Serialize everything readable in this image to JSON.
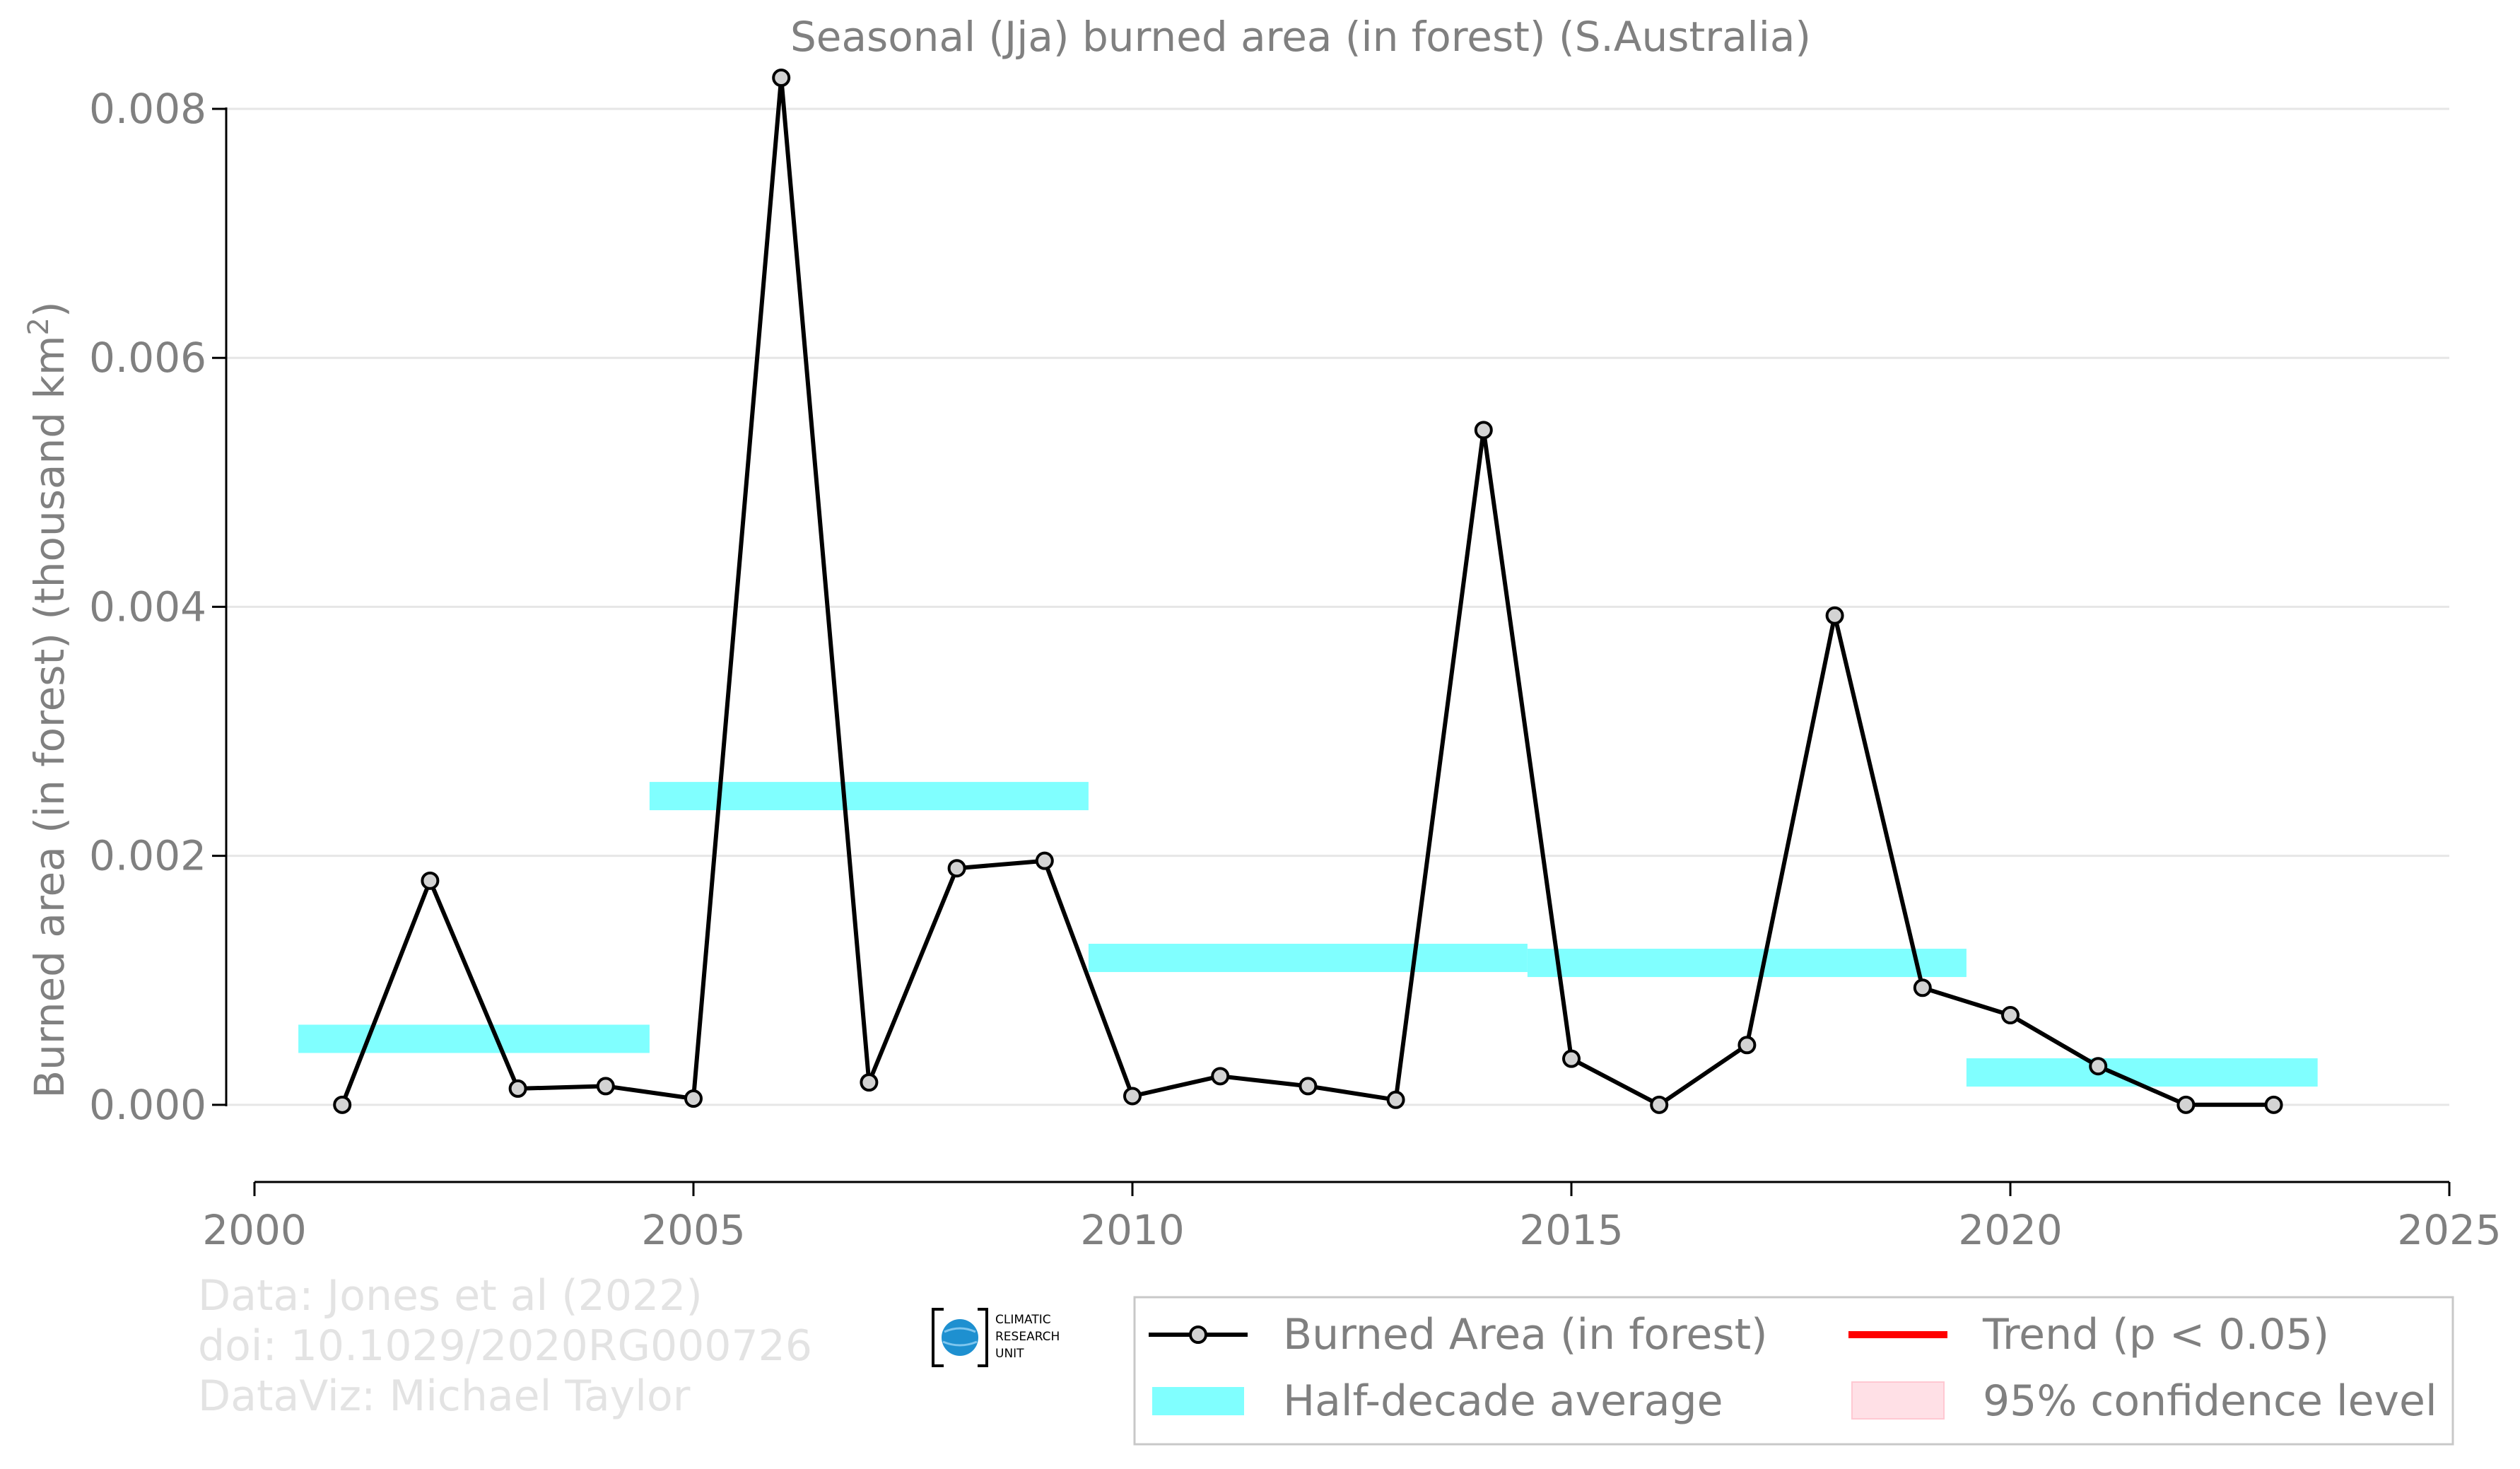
{
  "chart_data": {
    "type": "line",
    "title": "Seasonal (Jja) burned area (in forest) (S.Australia)",
    "xlabel": "",
    "ylabel": "Burned area (in forest) (thousand km",
    "ylabel_sup": "2",
    "ylabel_close": ")",
    "xlim": [
      2000,
      2025
    ],
    "ylim": [
      -0.00062,
      0.0085
    ],
    "x_ticks": [
      2000,
      2005,
      2010,
      2015,
      2020,
      2025
    ],
    "x_tick_labels": [
      "2000",
      "2005",
      "2010",
      "2015",
      "2020",
      "2025"
    ],
    "y_ticks": [
      0,
      0.002,
      0.004,
      0.006,
      0.008
    ],
    "y_tick_labels": [
      "0.000",
      "0.002",
      "0.004",
      "0.006",
      "0.008"
    ],
    "grid": "horizontal",
    "legend_position": "bottom-right",
    "series": [
      {
        "name": "Burned Area (in forest)",
        "color": "#000000",
        "marker_fill": "#d3d3d3",
        "x": [
          2001,
          2002,
          2003,
          2004,
          2005,
          2006,
          2007,
          2008,
          2009,
          2010,
          2011,
          2012,
          2013,
          2014,
          2015,
          2016,
          2017,
          2018,
          2019,
          2020,
          2021,
          2022,
          2023
        ],
        "y": [
          0.0,
          0.0018,
          0.00013,
          0.00015,
          5e-05,
          0.00825,
          0.00018,
          0.0019,
          0.00196,
          7e-05,
          0.00023,
          0.00015,
          4e-05,
          0.00542,
          0.00037,
          0.0,
          0.00048,
          0.00393,
          0.00094,
          0.00072,
          0.00031,
          0.0,
          0.0
        ]
      }
    ],
    "half_decade_averages": {
      "name": "Half-decade average",
      "color": "#80ffff",
      "segments": [
        {
          "x_start": 2000.5,
          "x_end": 2004.5,
          "value": 0.00053
        },
        {
          "x_start": 2004.5,
          "x_end": 2009.5,
          "value": 0.00248
        },
        {
          "x_start": 2009.5,
          "x_end": 2014.5,
          "value": 0.00118
        },
        {
          "x_start": 2014.5,
          "x_end": 2019.5,
          "value": 0.00114
        },
        {
          "x_start": 2019.5,
          "x_end": 2023.5,
          "value": 0.00026
        }
      ]
    },
    "trend": {
      "name": "Trend (p < 0.05)",
      "color": "#ff0000"
    },
    "confidence": {
      "name": "95% confidence level",
      "color": "#ffe0e6"
    }
  },
  "credits": {
    "line1": "Data: Jones et al (2022)",
    "line2": "doi: 10.1029/2020RG000726",
    "line3": "DataViz: Michael Taylor"
  },
  "logo": {
    "line1": "CLIMATIC",
    "line2": "RESEARCH",
    "line3": "UNIT"
  }
}
